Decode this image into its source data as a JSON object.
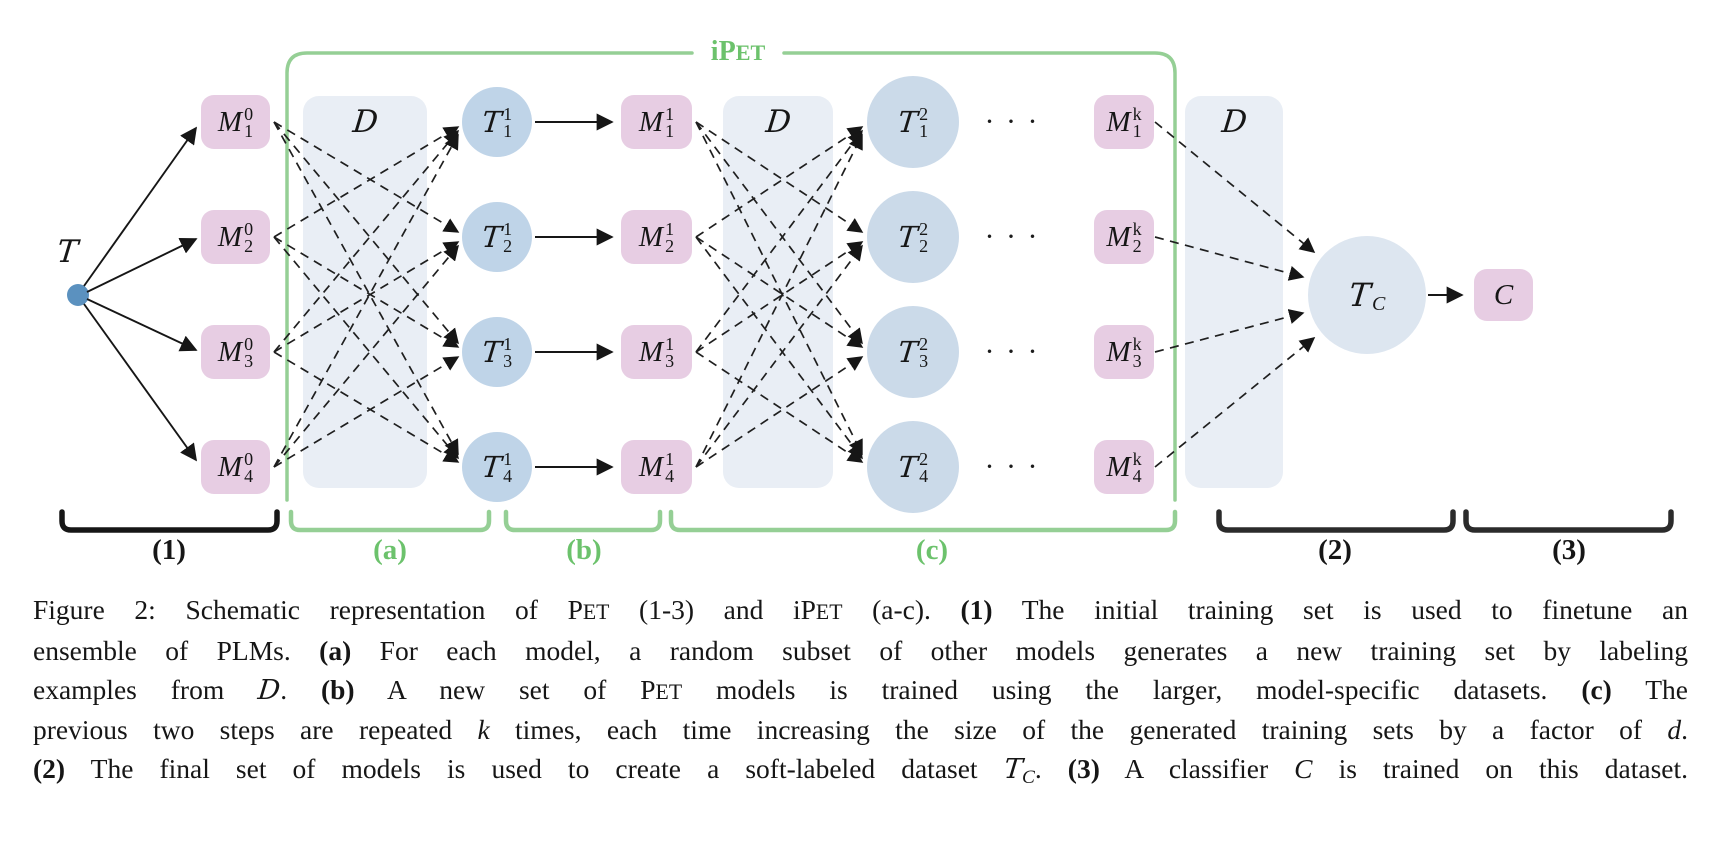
{
  "figure": {
    "ipet": {
      "runs": [
        {
          "t": "iP"
        },
        {
          "t": "ET",
          "s": "sc"
        }
      ]
    },
    "source": {
      "label": "T"
    },
    "nodes": {
      "d_labels": [
        "D",
        "D",
        "D"
      ],
      "m0": [
        {
          "main": "M",
          "sup": "0",
          "sub": "1"
        },
        {
          "main": "M",
          "sup": "0",
          "sub": "2"
        },
        {
          "main": "M",
          "sup": "0",
          "sub": "3"
        },
        {
          "main": "M",
          "sup": "0",
          "sub": "4"
        }
      ],
      "t1": [
        {
          "main": "T",
          "sup": "1",
          "sub": "1"
        },
        {
          "main": "T",
          "sup": "1",
          "sub": "2"
        },
        {
          "main": "T",
          "sup": "1",
          "sub": "3"
        },
        {
          "main": "T",
          "sup": "1",
          "sub": "4"
        }
      ],
      "m1": [
        {
          "main": "M",
          "sup": "1",
          "sub": "1"
        },
        {
          "main": "M",
          "sup": "1",
          "sub": "2"
        },
        {
          "main": "M",
          "sup": "1",
          "sub": "3"
        },
        {
          "main": "M",
          "sup": "1",
          "sub": "4"
        }
      ],
      "t2": [
        {
          "main": "T",
          "sup": "2",
          "sub": "1"
        },
        {
          "main": "T",
          "sup": "2",
          "sub": "2"
        },
        {
          "main": "T",
          "sup": "2",
          "sub": "3"
        },
        {
          "main": "T",
          "sup": "2",
          "sub": "4"
        }
      ],
      "mk": [
        {
          "main": "M",
          "sup": "k",
          "sub": "1"
        },
        {
          "main": "M",
          "sup": "k",
          "sub": "2"
        },
        {
          "main": "M",
          "sup": "k",
          "sub": "3"
        },
        {
          "main": "M",
          "sup": "k",
          "sub": "4"
        }
      ],
      "tc": {
        "main": "T",
        "sub": "C"
      },
      "c": {
        "main": "C"
      },
      "dots": "· · ·"
    },
    "braces": [
      {
        "label": "(1)",
        "color": "black"
      },
      {
        "label": "(a)",
        "color": "green"
      },
      {
        "label": "(b)",
        "color": "green"
      },
      {
        "label": "(c)",
        "color": "green"
      },
      {
        "label": "(2)",
        "color": "black"
      },
      {
        "label": "(3)",
        "color": "black"
      }
    ]
  },
  "caption": {
    "lines": [
      [
        {
          "t": "Figure 2: Schematic representation of P"
        },
        {
          "t": "ET",
          "s": "sc"
        },
        {
          "t": " (1-3) and iP"
        },
        {
          "t": "ET",
          "s": "sc"
        },
        {
          "t": " (a-c). "
        },
        {
          "t": "(1)",
          "s": "b"
        },
        {
          "t": " The initial training set is used to finetune an"
        }
      ],
      [
        {
          "t": "ensemble of PLMs. "
        },
        {
          "t": "(a)",
          "s": "b"
        },
        {
          "t": " For each model, a random subset of other models generates a new training set by labeling"
        }
      ],
      [
        {
          "t": "examples from "
        },
        {
          "t": "D",
          "s": "cal"
        },
        {
          "t": ". "
        },
        {
          "t": "(b)",
          "s": "b"
        },
        {
          "t": " A new set of P"
        },
        {
          "t": "ET",
          "s": "sc"
        },
        {
          "t": " models is trained using the larger, model-specific datasets. "
        },
        {
          "t": "(c)",
          "s": "b"
        },
        {
          "t": " The"
        }
      ],
      [
        {
          "t": "previous two steps are repeated "
        },
        {
          "t": "k",
          "s": "i"
        },
        {
          "t": " times, each time increasing the size of the generated training sets by a factor of "
        },
        {
          "t": "d",
          "s": "i"
        },
        {
          "t": "."
        }
      ],
      [
        {
          "t": "(2)",
          "s": "b"
        },
        {
          "t": " The final set of models is used to create a soft-labeled dataset "
        },
        {
          "t": "T",
          "s": "cal"
        },
        {
          "t": "C",
          "s": "subi"
        },
        {
          "t": ". "
        },
        {
          "t": "(3)",
          "s": "b"
        },
        {
          "t": " A classifier "
        },
        {
          "t": "C",
          "s": "i"
        },
        {
          "t": " is trained on this dataset."
        }
      ]
    ]
  },
  "colors": {
    "pink": "#e7cde3",
    "t1": "#bfd4e8",
    "t2": "#cbdae9",
    "tc": "#dde6f0",
    "d": "#e9eef5",
    "dot": "#5b91bf",
    "green-line": "#95cf95",
    "green-text": "#6cc26c",
    "ink": "#161616"
  }
}
